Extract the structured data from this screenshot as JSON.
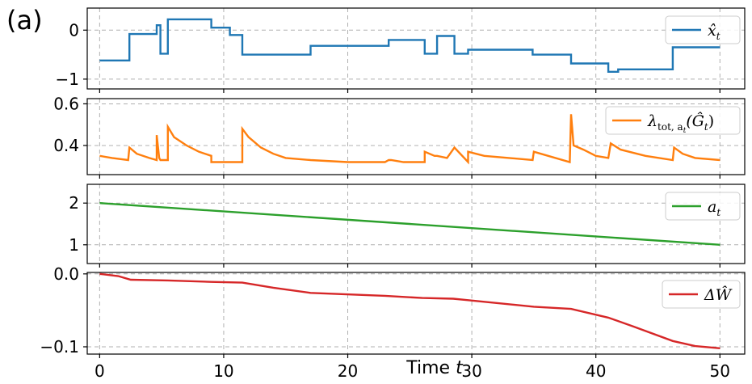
{
  "figure": {
    "panel_label": "(a)"
  },
  "chart_data": [
    {
      "type": "line",
      "step": true,
      "x_domain": [
        -1,
        52
      ],
      "ylim": [
        -1.2,
        0.45
      ],
      "yticks": [
        0,
        -1
      ],
      "ytick_labels": [
        "0",
        "−1"
      ],
      "xticks": [
        0,
        10,
        20,
        30,
        40,
        50
      ],
      "show_xtick_labels": false,
      "grid": true,
      "legend_position": "top-right",
      "series": [
        {
          "name": "x̂",
          "name_subscript": "t",
          "color": "#1f77b4",
          "x": [
            0,
            2.4,
            2.4,
            4.6,
            4.6,
            4.9,
            4.9,
            5.5,
            5.5,
            9.0,
            9.0,
            10.5,
            10.5,
            11.5,
            11.5,
            17.0,
            17.0,
            23.3,
            23.3,
            26.2,
            26.2,
            27.2,
            27.2,
            28.6,
            28.6,
            29.7,
            29.7,
            34.9,
            34.9,
            38.0,
            38.0,
            41.0,
            41.0,
            41.8,
            41.8,
            46.2,
            46.2,
            50
          ],
          "y": [
            -0.62,
            -0.62,
            -0.08,
            -0.08,
            0.1,
            0.1,
            -0.48,
            -0.48,
            0.22,
            0.22,
            0.05,
            0.05,
            -0.1,
            -0.1,
            -0.5,
            -0.5,
            -0.32,
            -0.32,
            -0.2,
            -0.2,
            -0.48,
            -0.48,
            -0.12,
            -0.12,
            -0.48,
            -0.48,
            -0.4,
            -0.4,
            -0.5,
            -0.5,
            -0.68,
            -0.68,
            -0.85,
            -0.85,
            -0.8,
            -0.8,
            -0.35,
            -0.35
          ]
        }
      ]
    },
    {
      "type": "line",
      "x_domain": [
        -1,
        52
      ],
      "ylim": [
        0.26,
        0.625
      ],
      "yticks": [
        0.6,
        0.4
      ],
      "ytick_labels": [
        "0.6",
        "0.4"
      ],
      "xticks": [
        0,
        10,
        20,
        30,
        40,
        50
      ],
      "show_xtick_labels": false,
      "grid": true,
      "legend_position": "top-right",
      "series": [
        {
          "name": "λ",
          "name_subscript": "tot, a",
          "name_sub_subscript": "t",
          "name_suffix": "(Ĝ",
          "name_suffix_subscript": "t",
          "name_tail": ")",
          "color": "#ff7f0e",
          "x": [
            0,
            1,
            2.3,
            2.4,
            3,
            4,
            4.6,
            4.6,
            4.8,
            4.9,
            5.5,
            5.5,
            6,
            7,
            8,
            9,
            9.0,
            10.5,
            11.5,
            11.5,
            12,
            13,
            14,
            15,
            17,
            20,
            23,
            23.3,
            23.5,
            24.5,
            26.2,
            26.2,
            27.0,
            27.2,
            28.0,
            28.6,
            29.7,
            29.7,
            31,
            33,
            34.9,
            35,
            37.9,
            38.0,
            38.2,
            39,
            40,
            41.0,
            41.2,
            42,
            44,
            46.2,
            46.3,
            47,
            48,
            50
          ],
          "y": [
            0.35,
            0.34,
            0.33,
            0.39,
            0.36,
            0.34,
            0.33,
            0.45,
            0.34,
            0.33,
            0.33,
            0.49,
            0.44,
            0.4,
            0.37,
            0.35,
            0.32,
            0.32,
            0.32,
            0.48,
            0.44,
            0.39,
            0.36,
            0.34,
            0.33,
            0.32,
            0.32,
            0.33,
            0.33,
            0.32,
            0.32,
            0.37,
            0.35,
            0.35,
            0.34,
            0.39,
            0.32,
            0.37,
            0.35,
            0.34,
            0.33,
            0.37,
            0.32,
            0.55,
            0.4,
            0.38,
            0.35,
            0.34,
            0.41,
            0.38,
            0.35,
            0.33,
            0.39,
            0.36,
            0.34,
            0.33
          ]
        }
      ]
    },
    {
      "type": "line",
      "x_domain": [
        -1,
        52
      ],
      "ylim": [
        0.55,
        2.45
      ],
      "yticks": [
        2,
        1
      ],
      "ytick_labels": [
        "2",
        "1"
      ],
      "xticks": [
        0,
        10,
        20,
        30,
        40,
        50
      ],
      "show_xtick_labels": false,
      "grid": true,
      "legend_position": "top-right",
      "series": [
        {
          "name": "a",
          "name_subscript": "t",
          "color": "#2ca02c",
          "x": [
            0,
            50
          ],
          "y": [
            2,
            1
          ]
        }
      ]
    },
    {
      "type": "line",
      "x_domain": [
        -1,
        52
      ],
      "ylim": [
        -0.11,
        0.002
      ],
      "yticks": [
        0.0,
        -0.1
      ],
      "ytick_labels": [
        "0.0",
        "−0.1"
      ],
      "xticks": [
        0,
        10,
        20,
        30,
        40,
        50
      ],
      "xtick_labels": [
        "0",
        "10",
        "20",
        "30",
        "40",
        "50"
      ],
      "show_xtick_labels": true,
      "xlabel": "Time",
      "xlabel_variable": "t",
      "grid": true,
      "legend_position": "top-right",
      "series": [
        {
          "name": "ΔŴ",
          "color": "#d62728",
          "x": [
            0,
            1.5,
            2.5,
            5.5,
            9,
            11.5,
            14,
            17,
            23,
            26,
            28.5,
            29.7,
            35,
            38,
            41,
            43,
            46.2,
            48,
            50
          ],
          "y": [
            0,
            -0.003,
            -0.008,
            -0.009,
            -0.011,
            -0.012,
            -0.019,
            -0.026,
            -0.03,
            -0.033,
            -0.034,
            -0.036,
            -0.045,
            -0.048,
            -0.06,
            -0.072,
            -0.092,
            -0.099,
            -0.102
          ]
        }
      ]
    }
  ]
}
